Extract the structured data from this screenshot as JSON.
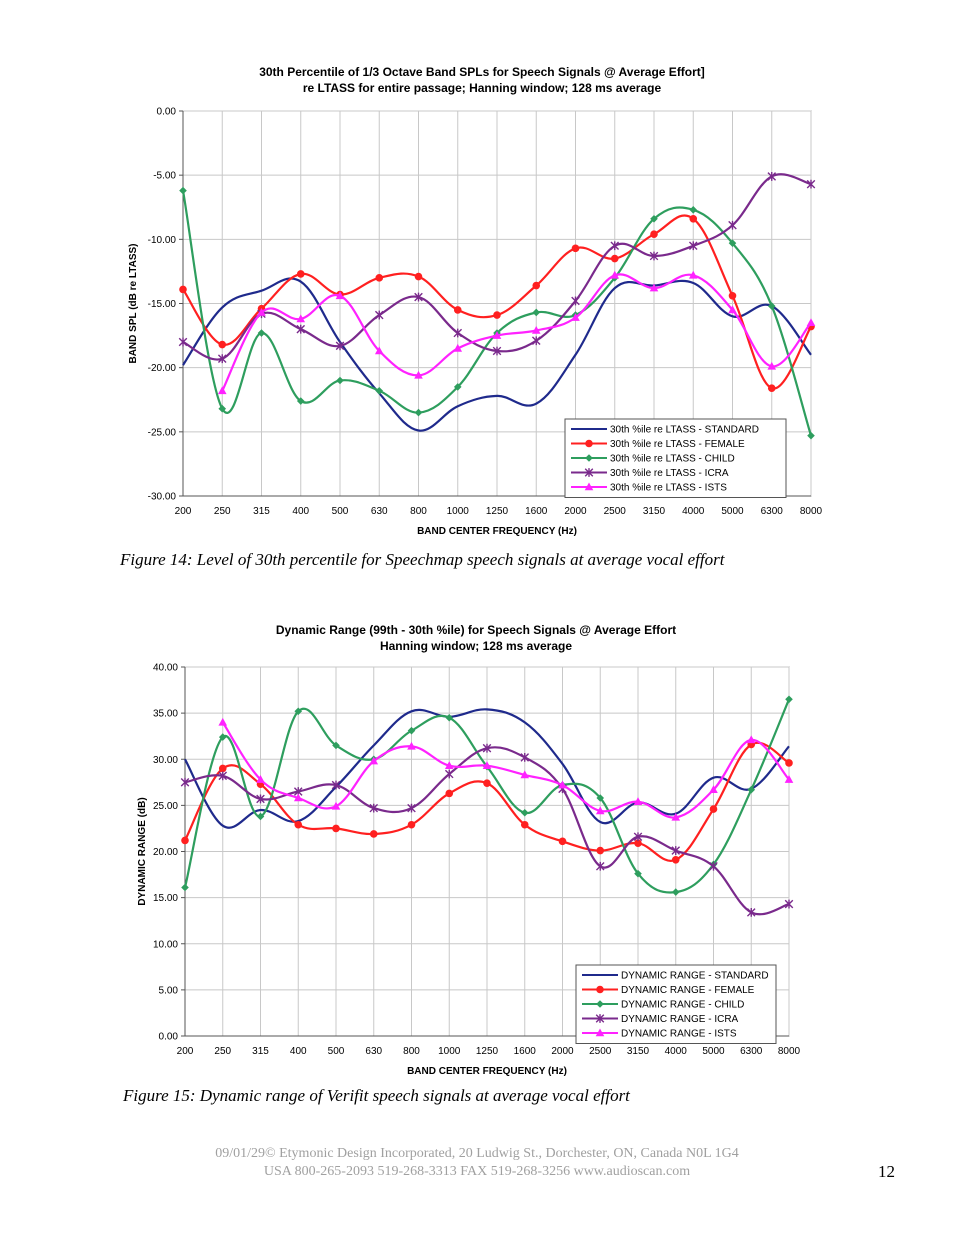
{
  "chart_data": [
    {
      "type": "line",
      "title": "30th Percentile of 1/3 Octave Band SPLs for Speech Signals @ Average Effort]",
      "subtitle": "re LTASS for entire passage; Hanning window; 128 ms average",
      "xlabel": "BAND CENTER FREQUENCY (Hz)",
      "ylabel": "BAND SPL (dB re LTASS)",
      "categories": [
        "200",
        "250",
        "315",
        "400",
        "500",
        "630",
        "800",
        "1000",
        "1250",
        "1600",
        "2000",
        "2500",
        "3150",
        "4000",
        "5000",
        "6300",
        "8000"
      ],
      "ylim": [
        -30,
        0
      ],
      "yticks": [
        "0.00",
        "-5.00",
        "-10.00",
        "-15.00",
        "-20.00",
        "-25.00",
        "-30.00"
      ],
      "ytick_values": [
        0,
        -5,
        -10,
        -15,
        -20,
        -25,
        -30
      ],
      "grid": true,
      "legend_position": "bottom-right",
      "series": [
        {
          "name": "30th %ile re LTASS - STANDARD",
          "color": "#1f2a8c",
          "marker": "none",
          "values": [
            -19.8,
            -15.3,
            -14.0,
            -13.3,
            -18.0,
            -22.0,
            -24.9,
            -23.0,
            -22.2,
            -22.8,
            -19.0,
            -13.8,
            -13.6,
            -13.4,
            -16.0,
            -15.2,
            -19.0
          ]
        },
        {
          "name": "30th %ile re LTASS - FEMALE",
          "color": "#ff2020",
          "marker": "circle",
          "values": [
            -13.9,
            -18.2,
            -15.4,
            -12.7,
            -14.3,
            -13.0,
            -12.9,
            -15.5,
            -15.9,
            -13.6,
            -10.7,
            -11.5,
            -9.6,
            -8.4,
            -14.4,
            -21.6,
            -16.8
          ]
        },
        {
          "name": "30th %ile re LTASS - CHILD",
          "color": "#2e9e5e",
          "marker": "diamond",
          "values": [
            -6.2,
            -23.2,
            -17.3,
            -22.6,
            -21.0,
            -21.8,
            -23.5,
            -21.5,
            -17.3,
            -15.7,
            -15.9,
            -13.0,
            -8.4,
            -7.7,
            -10.3,
            -15.2,
            -25.3
          ]
        },
        {
          "name": "30th %ile re LTASS - ICRA",
          "color": "#7a2a8c",
          "marker": "star",
          "values": [
            -18.0,
            -19.3,
            -15.8,
            -17.0,
            -18.3,
            -15.9,
            -14.5,
            -17.3,
            -18.7,
            -17.9,
            -14.8,
            -10.5,
            -11.3,
            -10.5,
            -8.9,
            -5.1,
            -5.7
          ]
        },
        {
          "name": "30th %ile re LTASS - ISTS",
          "color": "#ff22ff",
          "marker": "triangle",
          "values": [
            null,
            -21.8,
            -15.7,
            -16.2,
            -14.4,
            -18.7,
            -20.6,
            -18.5,
            -17.5,
            -17.1,
            -16.1,
            -12.8,
            -13.8,
            -12.8,
            -15.5,
            -19.9,
            -16.5
          ]
        }
      ]
    },
    {
      "type": "line",
      "title": "Dynamic Range (99th - 30th %ile) for Speech Signals @ Average Effort",
      "subtitle": "Hanning window; 128 ms average",
      "xlabel": "BAND CENTER FREQUENCY (Hz)",
      "ylabel": "DYNAMIC RANGE (dB)",
      "categories": [
        "200",
        "250",
        "315",
        "400",
        "500",
        "630",
        "800",
        "1000",
        "1250",
        "1600",
        "2000",
        "2500",
        "3150",
        "4000",
        "5000",
        "6300",
        "8000"
      ],
      "ylim": [
        0,
        40
      ],
      "yticks": [
        "40.00",
        "35.00",
        "30.00",
        "25.00",
        "20.00",
        "15.00",
        "10.00",
        "5.00",
        "0.00"
      ],
      "ytick_values": [
        40,
        35,
        30,
        25,
        20,
        15,
        10,
        5,
        0
      ],
      "grid": true,
      "legend_position": "bottom-right",
      "series": [
        {
          "name": "DYNAMIC RANGE - STANDARD",
          "color": "#1f2a8c",
          "marker": "none",
          "values": [
            30.0,
            22.8,
            24.5,
            23.3,
            27.0,
            31.5,
            35.2,
            34.6,
            35.4,
            34.0,
            29.5,
            23.2,
            25.3,
            24.1,
            28.0,
            26.8,
            31.4
          ]
        },
        {
          "name": "DYNAMIC RANGE - FEMALE",
          "color": "#ff2020",
          "marker": "circle",
          "values": [
            21.2,
            29.0,
            27.3,
            22.9,
            22.5,
            21.9,
            22.9,
            26.3,
            27.4,
            22.9,
            21.1,
            20.1,
            20.9,
            19.1,
            24.6,
            31.6,
            29.6
          ]
        },
        {
          "name": "DYNAMIC RANGE - CHILD",
          "color": "#2e9e5e",
          "marker": "diamond",
          "values": [
            16.1,
            32.4,
            23.8,
            35.2,
            31.5,
            30.0,
            33.1,
            34.5,
            29.2,
            24.2,
            27.2,
            25.8,
            17.6,
            15.6,
            18.6,
            26.7,
            36.5
          ]
        },
        {
          "name": "DYNAMIC RANGE - ICRA",
          "color": "#7a2a8c",
          "marker": "star",
          "values": [
            27.5,
            28.2,
            25.7,
            26.5,
            27.2,
            24.7,
            24.7,
            28.4,
            31.2,
            30.2,
            26.8,
            18.4,
            21.6,
            20.1,
            18.4,
            13.4,
            14.3
          ]
        },
        {
          "name": "DYNAMIC RANGE - ISTS",
          "color": "#ff22ff",
          "marker": "triangle",
          "values": [
            null,
            34.0,
            27.8,
            25.8,
            24.9,
            29.8,
            31.4,
            29.3,
            29.3,
            28.3,
            27.2,
            24.4,
            25.4,
            23.7,
            26.7,
            32.1,
            27.8
          ]
        }
      ]
    }
  ],
  "captions": {
    "figure14": "Figure 14:  Level of 30th percentile for Speechmap speech signals at average vocal effort",
    "figure15": "Figure 15:  Dynamic range of Verifit speech signals at average vocal effort"
  },
  "footer": {
    "line1": "09/01/29© Etymonic Design Incorporated, 20 Ludwig St., Dorchester, ON, Canada  N0L 1G4",
    "line2": "USA 800-265-2093  519-268-3313  FAX 519-268-3256  www.audioscan.com",
    "page_number": "12"
  }
}
